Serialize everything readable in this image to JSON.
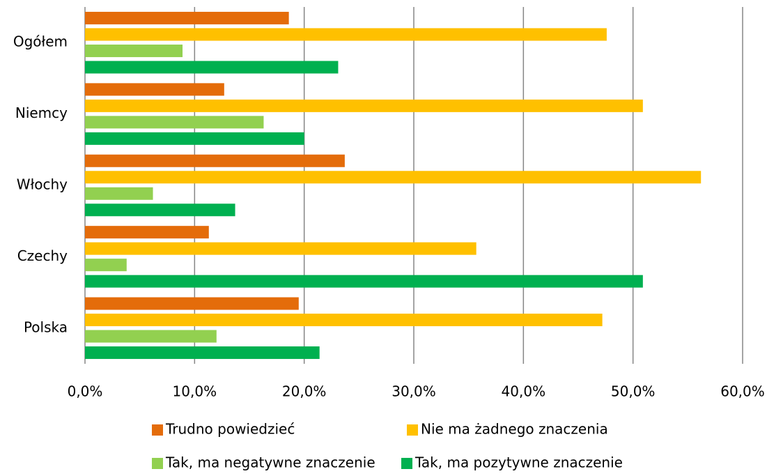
{
  "chart_data": {
    "type": "barh",
    "categories": [
      "Ogółem",
      "Niemcy",
      "Włochy",
      "Czechy",
      "Polska"
    ],
    "series": [
      {
        "name": "Trudno powiedzieć",
        "color": "#E46C0A",
        "values": [
          18.6,
          12.7,
          23.7,
          11.3,
          19.5
        ]
      },
      {
        "name": "Nie ma żadnego znaczenia",
        "color": "#FFC000",
        "values": [
          47.6,
          50.9,
          56.2,
          35.7,
          47.2
        ]
      },
      {
        "name": "Tak, ma negatywne znaczenie",
        "color": "#92D050",
        "values": [
          8.9,
          16.3,
          6.2,
          3.8,
          12.0
        ]
      },
      {
        "name": "Tak, ma pozytywne znaczenie",
        "color": "#00B050",
        "values": [
          23.1,
          20.0,
          13.7,
          50.9,
          21.4
        ]
      }
    ],
    "xlim": [
      0,
      60
    ],
    "xticks": [
      {
        "value": 0,
        "label": "0,0%"
      },
      {
        "value": 10,
        "label": "10,0%"
      },
      {
        "value": 20,
        "label": "20,0%"
      },
      {
        "value": 30,
        "label": "30,0%"
      },
      {
        "value": 40,
        "label": "40,0%"
      },
      {
        "value": 50,
        "label": "50,0%"
      },
      {
        "value": 60,
        "label": "60,0%"
      }
    ],
    "grid": true,
    "legend": "bottom"
  }
}
